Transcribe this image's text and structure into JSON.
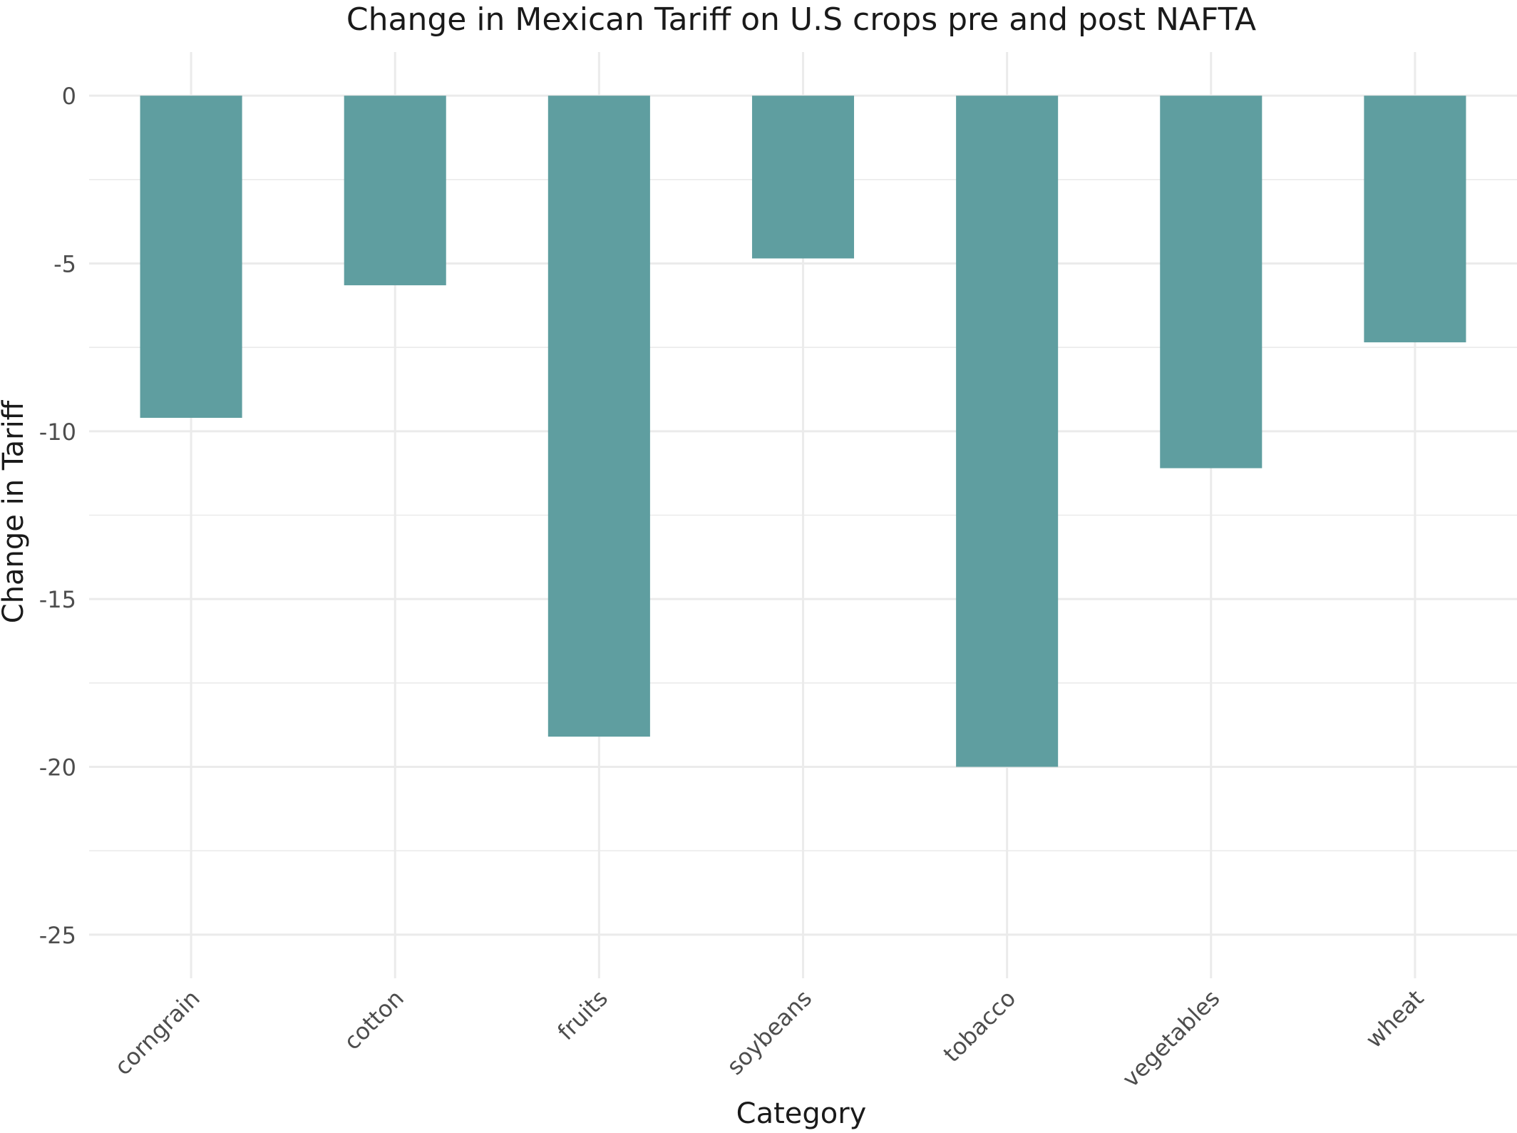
{
  "chart_data": {
    "type": "bar",
    "title": "Change in Mexican Tariff on U.S crops pre and post NAFTA",
    "xlabel": "Category",
    "ylabel": "Change in Tariff",
    "categories": [
      "corngrain",
      "cotton",
      "fruits",
      "soybeans",
      "tobacco",
      "vegetables",
      "wheat"
    ],
    "values": [
      -9.6,
      -5.65,
      -19.1,
      -4.85,
      -20.0,
      -11.1,
      -7.35
    ],
    "ylim": [
      -26.3,
      1.3
    ],
    "yticks": [
      0,
      -5,
      -10,
      -15,
      -20,
      -25
    ],
    "ytick_labels": [
      "0",
      "-5",
      "-10",
      "-15",
      "-20",
      "-25"
    ],
    "grid": true,
    "legend": "none",
    "colors": {
      "bar": "#5f9ea0",
      "grid": "#ebebeb",
      "text": "#1a1a1a",
      "tick_text": "#4d4d4d"
    }
  }
}
